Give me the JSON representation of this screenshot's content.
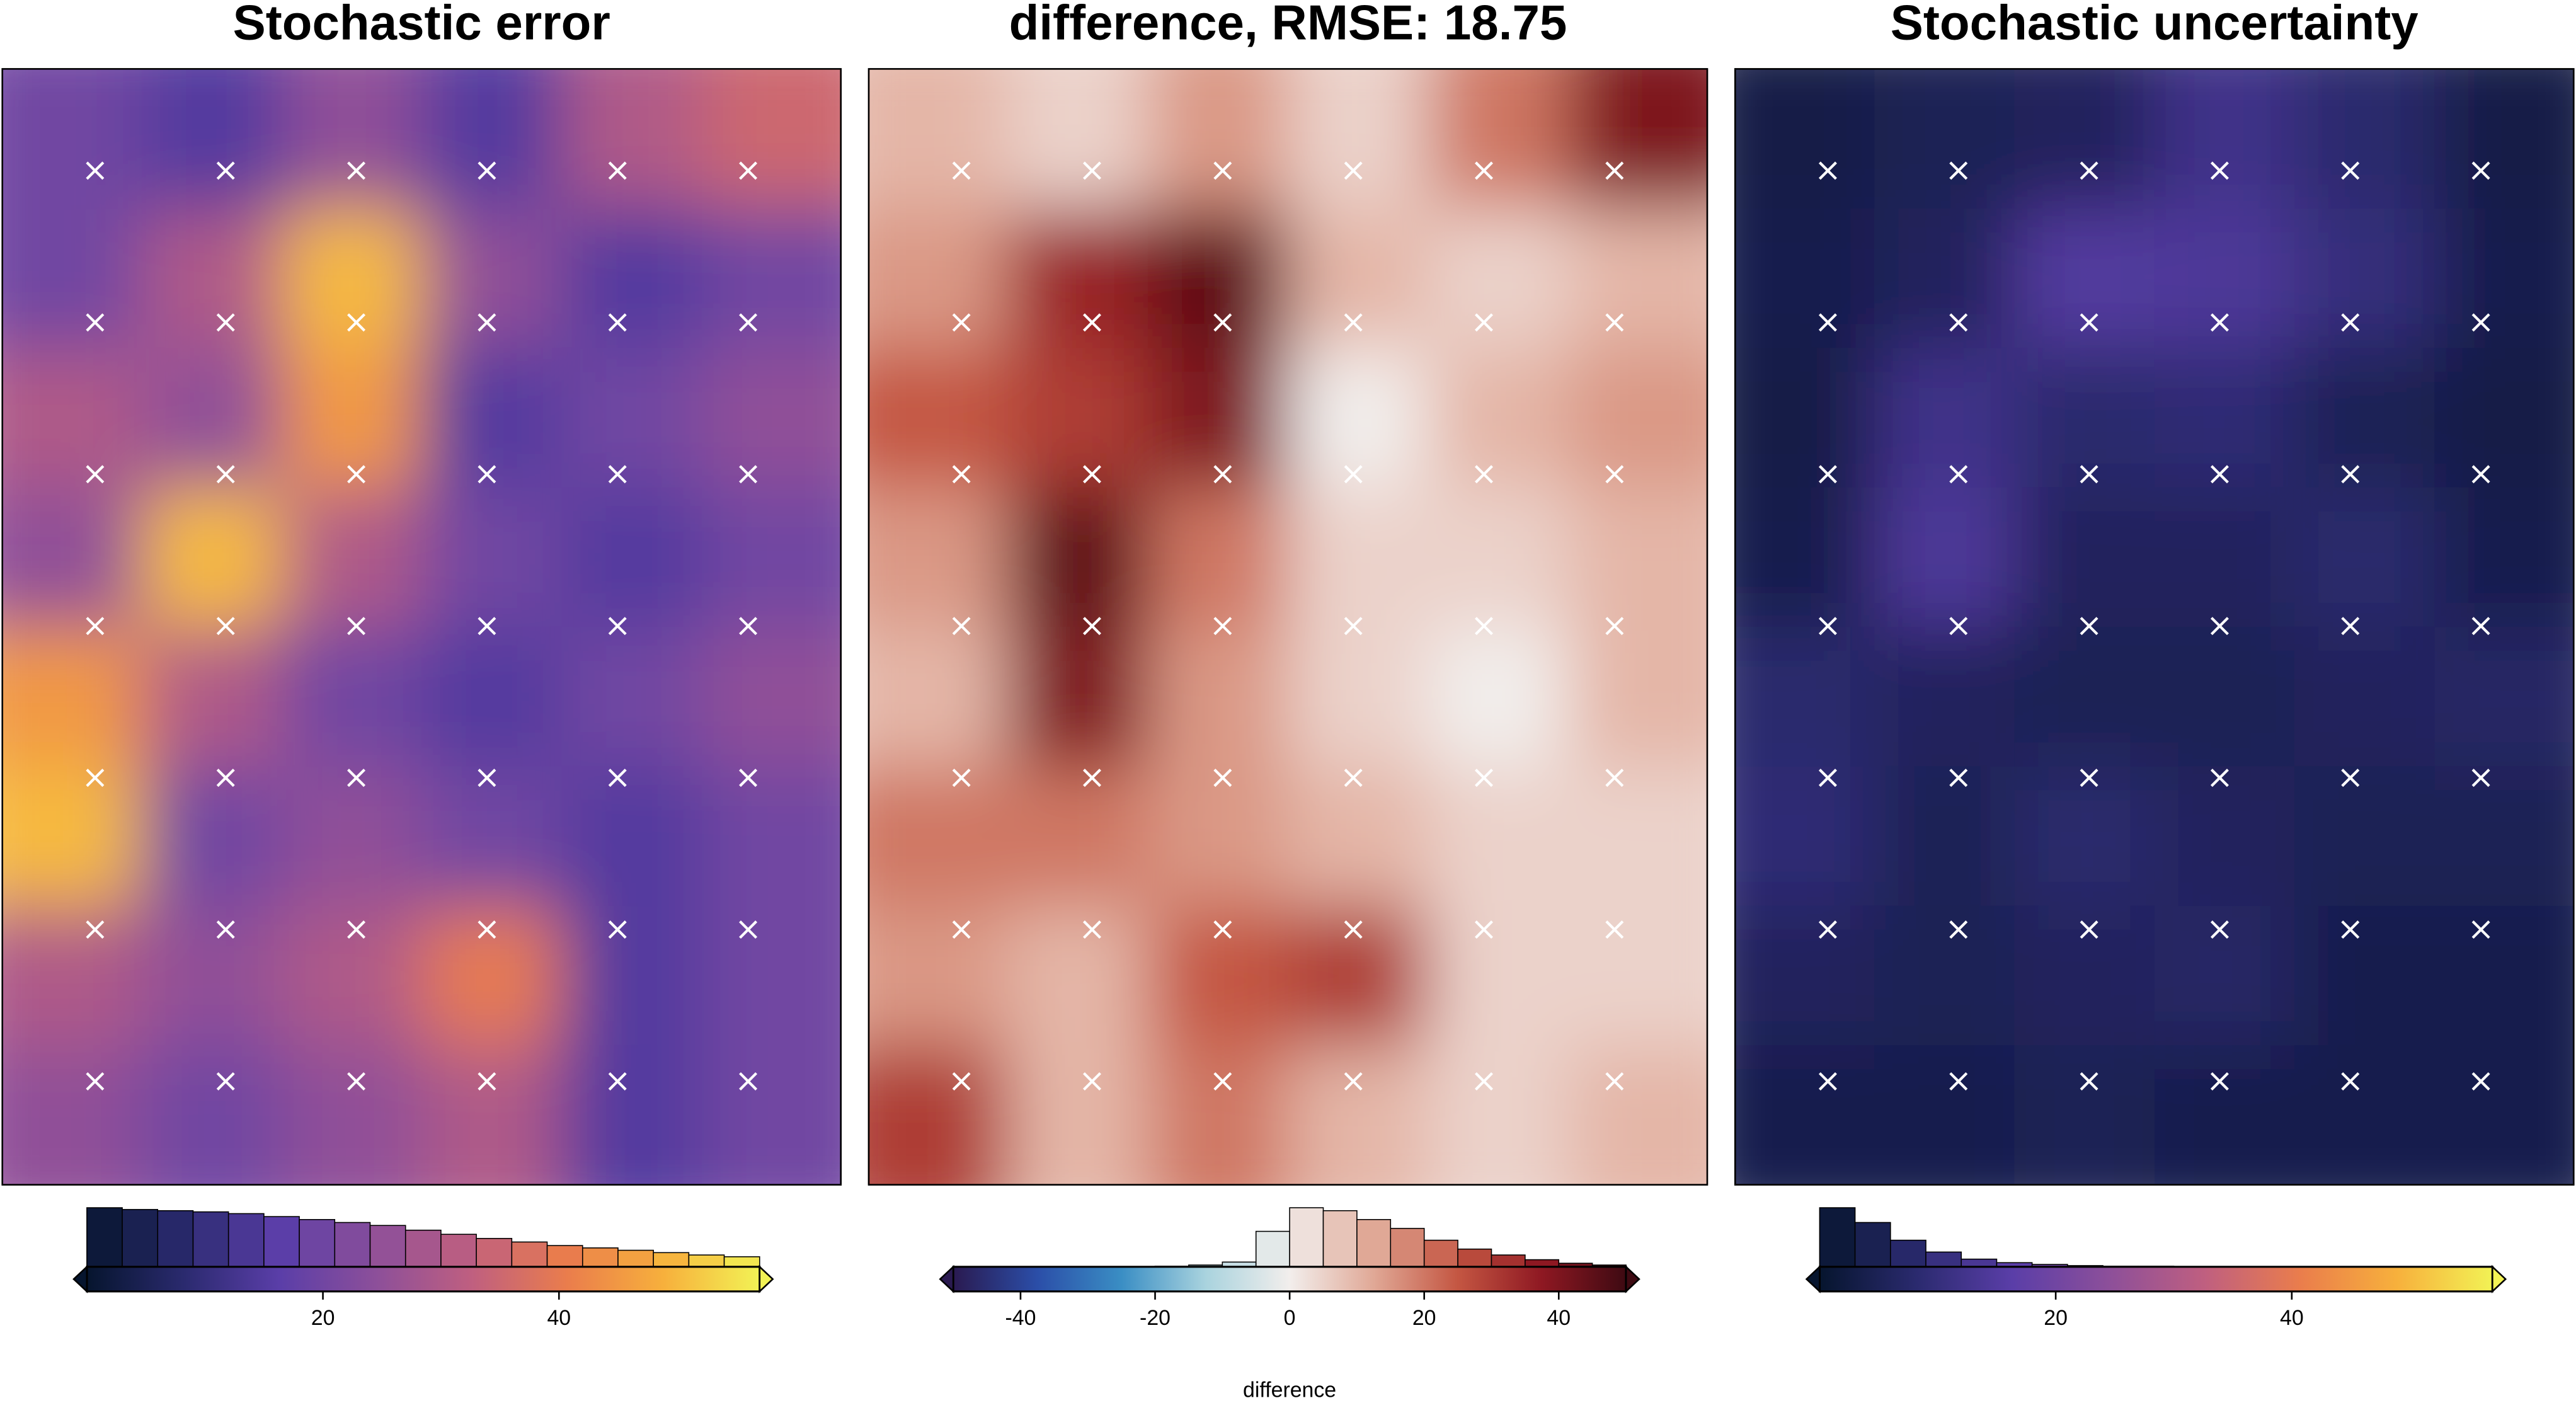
{
  "chart_data": [
    {
      "type": "heatmap",
      "title": "Stochastic error",
      "colormap": [
        "#06152e",
        "#2a2a6e",
        "#5a3ea8",
        "#8c4f9a",
        "#bf5f80",
        "#ea7d4c",
        "#f7b03c",
        "#f2f255"
      ],
      "values": [
        [
          20,
          15,
          25,
          15,
          30,
          35
        ],
        [
          20,
          30,
          50,
          25,
          15,
          20
        ],
        [
          30,
          25,
          45,
          15,
          20,
          25
        ],
        [
          25,
          50,
          30,
          20,
          15,
          20
        ],
        [
          45,
          30,
          20,
          15,
          20,
          25
        ],
        [
          50,
          20,
          25,
          20,
          15,
          20
        ],
        [
          30,
          25,
          30,
          40,
          15,
          20
        ],
        [
          25,
          20,
          25,
          30,
          15,
          20
        ]
      ],
      "xlim": [
        0,
        57
      ],
      "xticks": [
        20,
        40
      ],
      "bins": [
        0,
        3,
        6,
        9,
        12,
        15,
        18,
        21,
        24,
        27,
        30,
        33,
        36,
        39,
        42,
        45,
        48,
        51,
        54,
        57
      ],
      "counts": [
        100,
        97,
        95,
        93,
        90,
        85,
        80,
        75,
        70,
        62,
        55,
        48,
        42,
        36,
        32,
        28,
        24,
        20,
        17
      ]
    },
    {
      "type": "heatmap",
      "title": "difference, RMSE: 18.75",
      "colormap": [
        "#2a1a50",
        "#2b4ea8",
        "#3a8ec4",
        "#a9d3de",
        "#f2eeec",
        "#e0a896",
        "#c45642",
        "#8e1822",
        "#3e0a12"
      ],
      "values": [
        [
          10,
          5,
          15,
          5,
          20,
          40
        ],
        [
          15,
          35,
          45,
          10,
          5,
          10
        ],
        [
          25,
          30,
          40,
          0,
          10,
          15
        ],
        [
          15,
          45,
          20,
          5,
          5,
          10
        ],
        [
          10,
          40,
          15,
          5,
          0,
          10
        ],
        [
          20,
          20,
          15,
          10,
          5,
          5
        ],
        [
          15,
          10,
          25,
          30,
          5,
          5
        ],
        [
          30,
          10,
          20,
          10,
          5,
          10
        ]
      ],
      "xlim": [
        -50,
        50
      ],
      "xticks": [
        -40,
        -20,
        0,
        20,
        40
      ],
      "xlabel": "difference",
      "bins": [
        -50,
        -45,
        -40,
        -35,
        -30,
        -25,
        -20,
        -15,
        -10,
        -5,
        0,
        5,
        10,
        15,
        20,
        25,
        30,
        35,
        40,
        45,
        50
      ],
      "counts": [
        0,
        0,
        0,
        0,
        0,
        0,
        1,
        3,
        8,
        60,
        100,
        95,
        80,
        65,
        45,
        30,
        20,
        12,
        6,
        3
      ]
    },
    {
      "type": "heatmap",
      "title": "Stochastic uncertainty",
      "colormap": [
        "#06152e",
        "#2a2a6e",
        "#5a3ea8",
        "#8c4f9a",
        "#bf5f80",
        "#ea7d4c",
        "#f7b03c",
        "#f2f255"
      ],
      "values": [
        [
          3,
          5,
          6,
          12,
          8,
          3
        ],
        [
          4,
          6,
          15,
          14,
          10,
          4
        ],
        [
          3,
          12,
          8,
          9,
          5,
          3
        ],
        [
          4,
          14,
          6,
          6,
          8,
          4
        ],
        [
          8,
          6,
          5,
          5,
          6,
          7
        ],
        [
          9,
          5,
          8,
          6,
          5,
          5
        ],
        [
          6,
          5,
          6,
          7,
          4,
          4
        ],
        [
          4,
          4,
          5,
          4,
          4,
          4
        ]
      ],
      "xlim": [
        0,
        57
      ],
      "xticks": [
        20,
        40
      ],
      "bins": [
        0,
        3,
        6,
        9,
        12,
        15,
        18,
        21,
        24,
        27,
        30,
        33,
        36,
        39,
        42,
        45,
        48,
        51,
        54,
        57
      ],
      "counts": [
        100,
        75,
        45,
        25,
        13,
        7,
        4,
        2,
        1,
        1,
        0,
        0,
        0,
        0,
        0,
        0,
        0,
        0,
        0
      ]
    }
  ]
}
